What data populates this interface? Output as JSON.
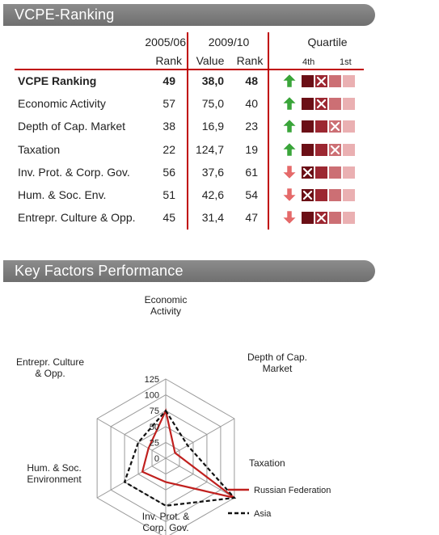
{
  "sections": {
    "ranking_title": "VCPE-Ranking",
    "factors_title": "Key Factors Performance"
  },
  "table": {
    "header": {
      "period_a": "2005/06",
      "period_b": "2009/10",
      "rank_a": "Rank",
      "value_b": "Value",
      "rank_b": "Rank",
      "quartile": "Quartile",
      "q_4th": "4th",
      "q_1st": "1st"
    },
    "colors": {
      "q1": "#6b0f16",
      "q2": "#9c2731",
      "q3": "#cc6f74",
      "q4": "#eab0b2",
      "up_arrow": "#3aa53a",
      "down_arrow": "#e56a6a"
    },
    "rows": [
      {
        "label": "VCPE Ranking",
        "rank_2005": "49",
        "value_2009": "38,0",
        "rank_2009": "48",
        "trend": "up",
        "quartile_mark": 2,
        "bold": true
      },
      {
        "label": "Economic Activity",
        "rank_2005": "57",
        "value_2009": "75,0",
        "rank_2009": "40",
        "trend": "up",
        "quartile_mark": 2,
        "bold": false
      },
      {
        "label": "Depth of Cap. Market",
        "rank_2005": "38",
        "value_2009": "16,9",
        "rank_2009": "23",
        "trend": "up",
        "quartile_mark": 3,
        "bold": false
      },
      {
        "label": "Taxation",
        "rank_2005": "22",
        "value_2009": "124,7",
        "rank_2009": "19",
        "trend": "up",
        "quartile_mark": 3,
        "bold": false
      },
      {
        "label": "Inv. Prot. & Corp. Gov.",
        "rank_2005": "56",
        "value_2009": "37,6",
        "rank_2009": "61",
        "trend": "down",
        "quartile_mark": 1,
        "bold": false
      },
      {
        "label": "Hum. & Soc. Env.",
        "rank_2005": "51",
        "value_2009": "42,6",
        "rank_2009": "54",
        "trend": "down",
        "quartile_mark": 1,
        "bold": false
      },
      {
        "label": "Entrepr. Culture & Opp.",
        "rank_2005": "45",
        "value_2009": "31,4",
        "rank_2009": "47",
        "trend": "down",
        "quartile_mark": 2,
        "bold": false
      }
    ]
  },
  "chart_data": {
    "type": "radar",
    "axes": [
      {
        "label_lines": [
          "Economic",
          "Activity"
        ]
      },
      {
        "label_lines": [
          "Depth of Cap.",
          "Market"
        ]
      },
      {
        "label_lines": [
          "Taxation"
        ]
      },
      {
        "label_lines": [
          "Inv. Prot. &",
          "Corp. Gov."
        ]
      },
      {
        "label_lines": [
          "Hum. & Soc.",
          "Environment"
        ]
      },
      {
        "label_lines": [
          "Entrepr. Culture",
          "& Opp."
        ]
      }
    ],
    "scale": {
      "min": 0,
      "max": 125,
      "ticks": [
        0,
        25,
        50,
        75,
        100,
        125
      ]
    },
    "tick_labels": [
      "0",
      "25",
      "50",
      "75",
      "100",
      "125"
    ],
    "grid": true,
    "legend_position": "bottom-right",
    "series": [
      {
        "name": "Russian Federation",
        "color": "#c0201e",
        "dash": "solid",
        "values": [
          75,
          16.9,
          124.7,
          37.6,
          42.6,
          31.4
        ]
      },
      {
        "name": "Asia",
        "color": "#111111",
        "dash": "dashed",
        "values": [
          75,
          40,
          125,
          75,
          75,
          50
        ]
      }
    ]
  }
}
